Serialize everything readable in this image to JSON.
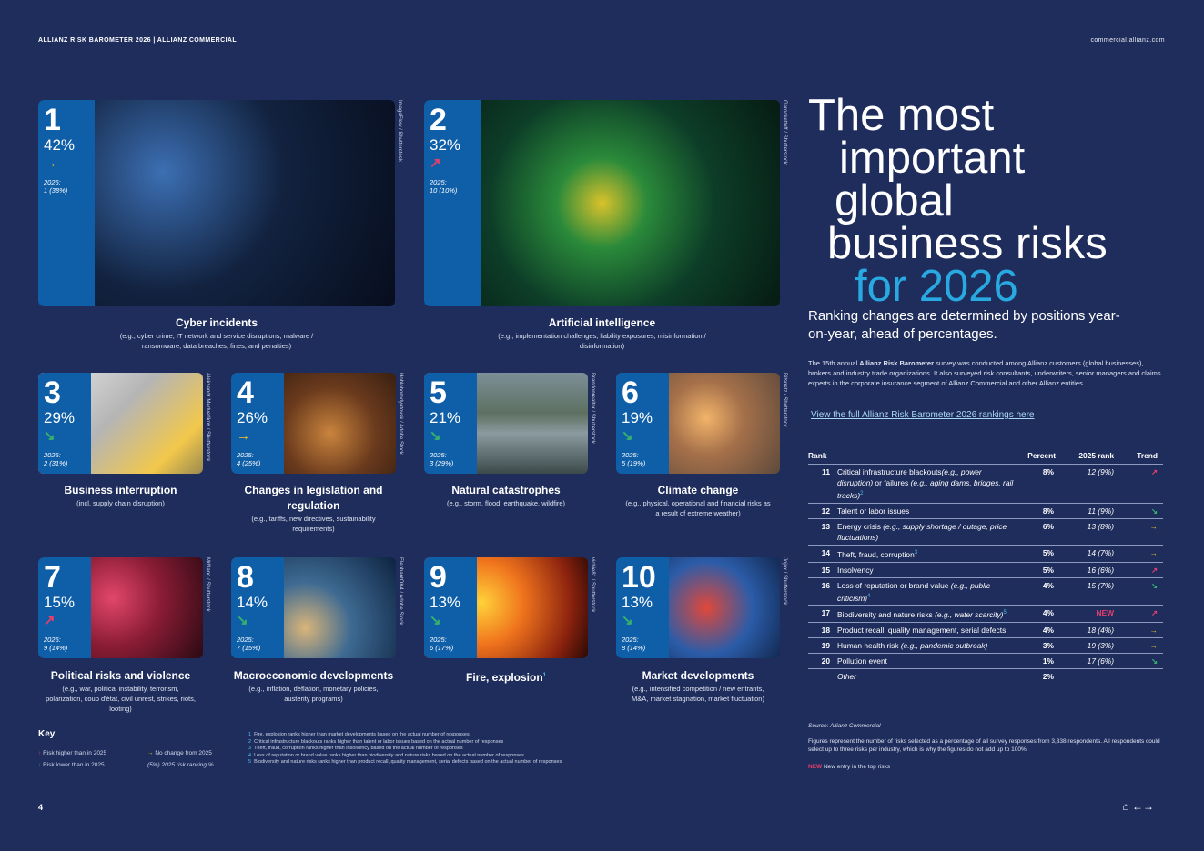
{
  "header": {
    "left": "ALLIANZ RISK BAROMETER 2026 | ALLIANZ COMMERCIAL",
    "right": "commercial.allianz.com"
  },
  "risks": [
    {
      "rank": "1",
      "percent": "42%",
      "trend": "same",
      "trend_symbol": "→",
      "prev_label": "2025:",
      "prev_value": "1 (38%)",
      "title": "Cyber incidents",
      "subtitle": "(e.g., cyber crime, IT network and service disruptions, malware / ransomware, data breaches, fines, and penalties)",
      "credit": "ImageFlow / Shutterstock",
      "image": "cyber-warning-screens"
    },
    {
      "rank": "2",
      "percent": "32%",
      "trend": "up",
      "trend_symbol": "↗",
      "prev_label": "2025:",
      "prev_value": "10 (10%)",
      "title": "Artificial intelligence",
      "subtitle": "(e.g., implementation challenges, liability exposures, misinformation / disinformation)",
      "credit": "Garockettoff / Shutterstock",
      "image": "circuit-board-chip"
    },
    {
      "rank": "3",
      "percent": "29%",
      "trend": "down",
      "trend_symbol": "↘",
      "prev_label": "2025:",
      "prev_value": "2 (31%)",
      "title": "Business interruption",
      "subtitle": "(incl. supply chain disruption)",
      "credit": "Aleksandr Medvedkov / Shutterstock",
      "image": "trucks-aerial"
    },
    {
      "rank": "4",
      "percent": "26%",
      "trend": "same",
      "trend_symbol": "→",
      "prev_label": "2025:",
      "prev_value": "4 (25%)",
      "title": "Changes in legislation and regulation",
      "subtitle": "(e.g., tariffs, new directives, sustainability requirements)",
      "credit": "Hohloborodyatovsk / Adobe Stock",
      "image": "gavel"
    },
    {
      "rank": "5",
      "percent": "21%",
      "trend": "down",
      "trend_symbol": "↘",
      "prev_label": "2025:",
      "prev_value": "3 (29%)",
      "title": "Natural catastrophes",
      "subtitle": "(e.g., storm, flood, earthquake, wildfire)",
      "credit": "Brandonrealtor / Shutterstock",
      "image": "flooded-road"
    },
    {
      "rank": "6",
      "percent": "19%",
      "trend": "down",
      "trend_symbol": "↘",
      "prev_label": "2025:",
      "prev_value": "5 (19%)",
      "title": "Climate change",
      "subtitle": "(e.g., physical, operational and financial risks as a result of extreme weather)",
      "credit": "Bitsnetz / Shutterstock",
      "image": "smokestacks"
    },
    {
      "rank": "7",
      "percent": "15%",
      "trend": "up",
      "trend_symbol": "↗",
      "prev_label": "2025:",
      "prev_value": "9 (14%)",
      "title": "Political risks and violence",
      "subtitle": "(e.g., war, political instability, terrorism, polarization, coup d'état, civil unrest, strikes, riots, looting)",
      "credit": "MrNano / Shutterstock",
      "image": "riot-police"
    },
    {
      "rank": "8",
      "percent": "14%",
      "trend": "down",
      "trend_symbol": "↘",
      "prev_label": "2025:",
      "prev_value": "7 (15%)",
      "title": "Macroeconomic developments",
      "subtitle": "(e.g., inflation, deflation, monetary policies, austerity programs)",
      "credit": "ElephantOK4 / Adobe Stock",
      "image": "coins-chart"
    },
    {
      "rank": "9",
      "percent": "13%",
      "trend": "down",
      "trend_symbol": "↘",
      "prev_label": "2025:",
      "prev_value": "6 (17%)",
      "title": "Fire, explosion",
      "title_note": "1",
      "subtitle": "",
      "credit": "vichie81 / Shutterstock",
      "image": "firefighter"
    },
    {
      "rank": "10",
      "percent": "13%",
      "trend": "down",
      "trend_symbol": "↘",
      "prev_label": "2025:",
      "prev_value": "8 (14%)",
      "title": "Market developments",
      "subtitle": "(e.g., intensified competition / new entrants, M&A, market stagnation, market fluctuation)",
      "credit": "Jojox / Shutterstock",
      "image": "stock-ticker"
    }
  ],
  "headline": {
    "line1": "The most",
    "line2": "important",
    "line3": "global",
    "line4": "business risks",
    "line5": "for 2026"
  },
  "lead": "Ranking changes are determined by positions year-on-year, ahead of percentages.",
  "intro_pre": "The 15th annual ",
  "intro_bold": "Allianz Risk Barometer",
  "intro_post": " survey was conducted among Allianz customers (global businesses), brokers and industry trade organizations. It also surveyed risk consultants, underwriters, senior managers and claims experts in the corporate insurance segment of Allianz Commercial and other Allianz entities.",
  "link_text": "View the full Allianz Risk Barometer 2026 rankings here",
  "table": {
    "headers": {
      "rank": "Rank",
      "percent": "Percent",
      "prev": "2025 rank",
      "trend": "Trend"
    },
    "rows": [
      {
        "rank": "11",
        "name": "Critical infrastructure blackouts",
        "example": "(e.g., power disruption)",
        "name2": " or failures ",
        "example2": "(e.g., aging dams, bridges, rail tracks)",
        "note": "2",
        "percent": "8%",
        "prev": "12 (9%)",
        "trend": "up",
        "symbol": "↗"
      },
      {
        "rank": "12",
        "name": "Talent or labor issues",
        "example": "",
        "name2": "",
        "example2": "",
        "note": "",
        "percent": "8%",
        "prev": "11 (9%)",
        "trend": "down",
        "symbol": "↘"
      },
      {
        "rank": "13",
        "name": "Energy crisis ",
        "example": "(e.g., supply shortage / outage, price fluctuations)",
        "name2": "",
        "example2": "",
        "note": "",
        "percent": "6%",
        "prev": "13 (8%)",
        "trend": "same",
        "symbol": "→"
      },
      {
        "rank": "14",
        "name": "Theft, fraud, corruption",
        "example": "",
        "name2": "",
        "example2": "",
        "note": "3",
        "percent": "5%",
        "prev": "14 (7%)",
        "trend": "same",
        "symbol": "→"
      },
      {
        "rank": "15",
        "name": "Insolvency",
        "example": "",
        "name2": "",
        "example2": "",
        "note": "",
        "percent": "5%",
        "prev": "16 (6%)",
        "trend": "up",
        "symbol": "↗"
      },
      {
        "rank": "16",
        "name": "Loss of reputation or brand value ",
        "example": "(e.g., public criticism)",
        "name2": "",
        "example2": "",
        "note": "4",
        "percent": "4%",
        "prev": "15 (7%)",
        "trend": "down",
        "symbol": "↘"
      },
      {
        "rank": "17",
        "name": "Biodiversity and nature risks ",
        "example": "(e.g., water scarcity)",
        "name2": "",
        "example2": "",
        "note": "5",
        "percent": "4%",
        "prev": "NEW",
        "trend": "up",
        "symbol": "↗"
      },
      {
        "rank": "18",
        "name": "Product recall, quality management, serial defects",
        "example": "",
        "name2": "",
        "example2": "",
        "note": "",
        "percent": "4%",
        "prev": "18 (4%)",
        "trend": "same",
        "symbol": "→"
      },
      {
        "rank": "19",
        "name": "Human health risk ",
        "example": "(e.g., pandemic outbreak)",
        "name2": "",
        "example2": "",
        "note": "",
        "percent": "3%",
        "prev": "19 (3%)",
        "trend": "same",
        "symbol": "→"
      },
      {
        "rank": "20",
        "name": "Pollution event",
        "example": "",
        "name2": "",
        "example2": "",
        "note": "",
        "percent": "1%",
        "prev": "17 (6%)",
        "trend": "down",
        "symbol": "↘"
      },
      {
        "rank": "",
        "name": "Other",
        "example": "",
        "name2": "",
        "example2": "",
        "note": "",
        "percent": "2%",
        "prev": "",
        "trend": "",
        "symbol": ""
      }
    ]
  },
  "source": "Source: Allianz Commercial",
  "figures_note": "Figures represent the number of risks selected as a percentage of all survey responses from 3,338 respondents. All respondents could select up to three risks per industry, which is why the figures do not add up to 100%.",
  "new_label": "NEW",
  "new_text": "New entry in the top risks",
  "key": {
    "title": "Key",
    "higher": "Risk higher than in 2025",
    "lower": "Risk lower than in 2025",
    "nochange": "No change from 2025",
    "prevrank": "(5%) 2025 risk ranking %"
  },
  "footnotes": [
    {
      "n": "1",
      "text": "Fire, explosion ranks higher than market developments based on the actual number of responses"
    },
    {
      "n": "2",
      "text": "Critical infrastructure blackouts ranks higher than talent or labor issues based on the actual number of responses"
    },
    {
      "n": "3",
      "text": "Theft, fraud, corruption ranks higher than insolvency based on the actual number of responses"
    },
    {
      "n": "4",
      "text": "Loss of reputation or brand value ranks higher than biodiversity and nature risks based on the actual number of responses"
    },
    {
      "n": "5",
      "text": "Biodiversity and nature risks ranks higher than product recall, quality management, serial defects based on the actual number of responses"
    }
  ],
  "page_number": "4",
  "colors": {
    "background": "#1f2d5c",
    "badge": "#0f5ea8",
    "accent": "#29a9e1",
    "up": "#e83e6b",
    "down": "#37b26b",
    "same": "#f5c518"
  }
}
